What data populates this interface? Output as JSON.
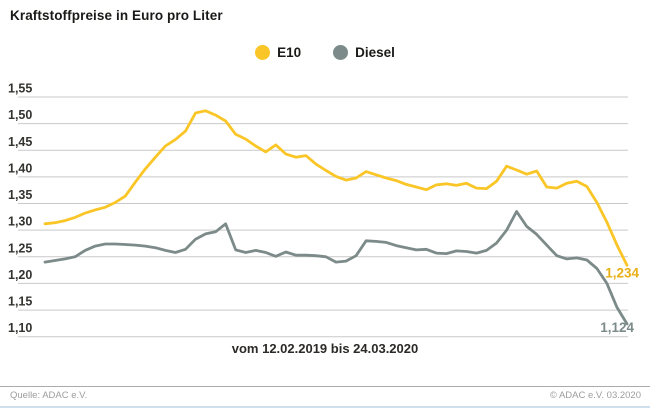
{
  "title": "Kraftstoffpreise in Euro pro Liter",
  "legend": [
    {
      "label": "E10",
      "color": "#fac627"
    },
    {
      "label": "Diesel",
      "color": "#7c8b89"
    }
  ],
  "chart_data": {
    "type": "line",
    "title": "Kraftstoffpreise in Euro pro Liter",
    "x_label": "vom 12.02.2019 bis 24.03.2020",
    "ylabel": "",
    "ylim": [
      1.1,
      1.55
    ],
    "grid": true,
    "legend_position": "top-center",
    "y_ticks": [
      "1,55",
      "1,50",
      "1,45",
      "1,40",
      "1,35",
      "1,30",
      "1,25",
      "1,20",
      "1,15",
      "1,10"
    ],
    "x_note": "weekly prices from 12.02.2019 to 24.03.2020",
    "series": [
      {
        "name": "E10",
        "color": "#fac627",
        "end_label": "1,234",
        "end_label_color": "#e9af16",
        "values": [
          1.312,
          1.314,
          1.318,
          1.324,
          1.332,
          1.338,
          1.343,
          1.352,
          1.364,
          1.39,
          1.415,
          1.437,
          1.458,
          1.47,
          1.486,
          1.52,
          1.524,
          1.516,
          1.505,
          1.48,
          1.471,
          1.458,
          1.447,
          1.46,
          1.443,
          1.437,
          1.44,
          1.424,
          1.412,
          1.401,
          1.394,
          1.398,
          1.41,
          1.404,
          1.398,
          1.393,
          1.386,
          1.381,
          1.376,
          1.385,
          1.387,
          1.384,
          1.388,
          1.379,
          1.378,
          1.392,
          1.42,
          1.413,
          1.405,
          1.411,
          1.381,
          1.379,
          1.388,
          1.392,
          1.382,
          1.352,
          1.315,
          1.272,
          1.234
        ]
      },
      {
        "name": "Diesel",
        "color": "#7c8b89",
        "end_label": "1,124",
        "end_label_color": "#7c8b89",
        "values": [
          1.24,
          1.243,
          1.246,
          1.25,
          1.262,
          1.27,
          1.274,
          1.274,
          1.273,
          1.272,
          1.27,
          1.267,
          1.262,
          1.258,
          1.264,
          1.283,
          1.293,
          1.297,
          1.312,
          1.263,
          1.258,
          1.262,
          1.258,
          1.251,
          1.259,
          1.253,
          1.253,
          1.252,
          1.25,
          1.24,
          1.242,
          1.252,
          1.28,
          1.279,
          1.277,
          1.271,
          1.267,
          1.263,
          1.264,
          1.257,
          1.256,
          1.261,
          1.26,
          1.257,
          1.262,
          1.276,
          1.3,
          1.335,
          1.307,
          1.292,
          1.272,
          1.252,
          1.246,
          1.248,
          1.244,
          1.228,
          1.2,
          1.155,
          1.124
        ]
      }
    ]
  },
  "footer": {
    "source": "Quelle: ADAC e.V.",
    "copyright": "© ADAC e.V.  03.2020"
  },
  "colors": {
    "grid": "#c9c9c9",
    "tick_text": "#33332f",
    "footer_divider": "#ababab",
    "bottom_accent": "#cee0eb"
  }
}
